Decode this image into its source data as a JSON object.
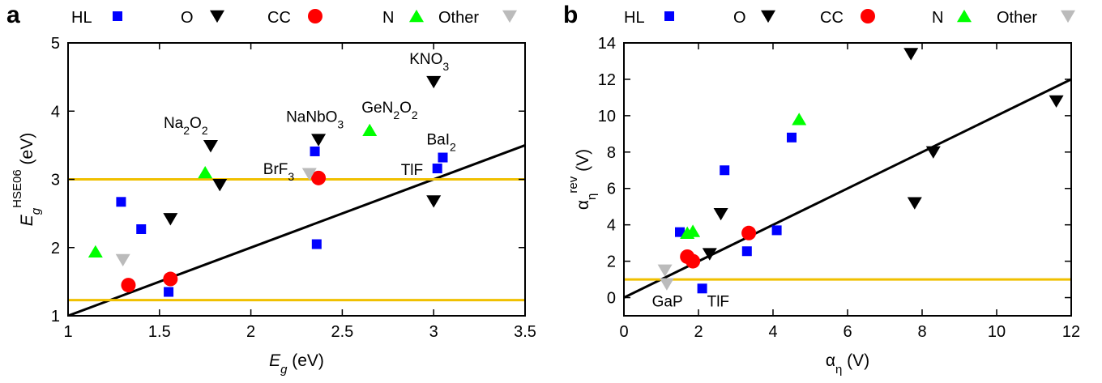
{
  "chart_data": [
    {
      "panel": "a",
      "type": "scatter",
      "xlabel": "E_g (eV)",
      "ylabel": "E_g^HSE06 (eV)",
      "xlim": [
        1,
        3.5
      ],
      "ylim": [
        1,
        5
      ],
      "xticks": [
        1,
        1.5,
        2,
        2.5,
        3,
        3.5
      ],
      "yticks": [
        1,
        2,
        3,
        4,
        5
      ],
      "xtick_labels": [
        "1",
        "1.5",
        "2",
        "2.5",
        "3",
        "3.5"
      ],
      "ytick_labels": [
        "1",
        "2",
        "3",
        "4",
        "5"
      ],
      "grid": false,
      "legend_position": "top",
      "series": [
        {
          "name": "HL",
          "marker": "square",
          "color": "#0000ff",
          "points": [
            [
              1.29,
              2.67
            ],
            [
              1.4,
              2.27
            ],
            [
              1.55,
              1.35
            ],
            [
              2.35,
              3.41
            ],
            [
              2.36,
              2.05
            ],
            [
              3.02,
              3.16
            ],
            [
              3.05,
              3.32
            ]
          ]
        },
        {
          "name": "O",
          "marker": "triangle-down",
          "color": "#000000",
          "points": [
            [
              1.56,
              2.42
            ],
            [
              1.78,
              3.49
            ],
            [
              1.83,
              2.92
            ],
            [
              2.37,
              3.58
            ],
            [
              3.0,
              4.43
            ],
            [
              3.0,
              2.68
            ]
          ]
        },
        {
          "name": "CC",
          "marker": "circle",
          "color": "#ff0000",
          "points": [
            [
              1.33,
              1.45
            ],
            [
              1.56,
              1.54
            ],
            [
              2.37,
              3.02
            ]
          ]
        },
        {
          "name": "N",
          "marker": "triangle-up",
          "color": "#00ff00",
          "points": [
            [
              1.15,
              1.94
            ],
            [
              1.75,
              3.1
            ],
            [
              2.65,
              3.72
            ]
          ]
        },
        {
          "name": "Other",
          "marker": "triangle-down",
          "color": "#bbbbbb",
          "points": [
            [
              1.3,
              1.82
            ],
            [
              2.32,
              3.08
            ]
          ]
        }
      ],
      "lines": [
        {
          "kind": "fit",
          "color": "#000000",
          "from": [
            1,
            1
          ],
          "to": [
            3.5,
            3.5
          ]
        },
        {
          "kind": "horizontal",
          "color": "#f0c000",
          "y": 3.0
        },
        {
          "kind": "horizontal",
          "color": "#f0c000",
          "y": 1.23
        }
      ],
      "annotations": [
        {
          "text": "KNO3",
          "x": 3.0,
          "y": 4.43
        },
        {
          "text": "Na2O2",
          "x": 1.78,
          "y": 3.49
        },
        {
          "text": "NaNbO3",
          "x": 2.37,
          "y": 3.58
        },
        {
          "text": "GeN2O2",
          "x": 2.65,
          "y": 3.72
        },
        {
          "text": "BrF3",
          "x": 2.32,
          "y": 3.08
        },
        {
          "text": "BaI2",
          "x": 3.05,
          "y": 3.32
        },
        {
          "text": "TlF",
          "x": 3.02,
          "y": 3.16
        }
      ]
    },
    {
      "panel": "b",
      "type": "scatter",
      "xlabel": "α_η (V)",
      "ylabel": "α_η^rev (V)",
      "xlim": [
        0,
        12
      ],
      "ylim": [
        -1,
        14
      ],
      "xticks": [
        0,
        2,
        4,
        6,
        8,
        10,
        12
      ],
      "yticks": [
        0,
        2,
        4,
        6,
        8,
        10,
        12,
        14
      ],
      "xtick_labels": [
        "0",
        "2",
        "4",
        "6",
        "8",
        "10",
        "12"
      ],
      "ytick_labels": [
        "0",
        "2",
        "4",
        "6",
        "8",
        "10",
        "12",
        "14"
      ],
      "grid": false,
      "legend_position": "top",
      "series": [
        {
          "name": "HL",
          "marker": "square",
          "color": "#0000ff",
          "points": [
            [
              1.5,
              3.6
            ],
            [
              2.1,
              0.5
            ],
            [
              2.7,
              7.0
            ],
            [
              3.3,
              2.55
            ],
            [
              4.1,
              3.7
            ],
            [
              4.5,
              8.8
            ]
          ]
        },
        {
          "name": "O",
          "marker": "triangle-down",
          "color": "#000000",
          "points": [
            [
              2.3,
              2.4
            ],
            [
              2.6,
              4.6
            ],
            [
              7.7,
              13.4
            ],
            [
              7.8,
              5.2
            ],
            [
              8.3,
              8.0
            ],
            [
              11.6,
              10.8
            ]
          ]
        },
        {
          "name": "CC",
          "marker": "circle",
          "color": "#ff0000",
          "points": [
            [
              1.7,
              2.25
            ],
            [
              1.85,
              2.0
            ],
            [
              3.35,
              3.55
            ]
          ]
        },
        {
          "name": "N",
          "marker": "triangle-up",
          "color": "#00ff00",
          "points": [
            [
              1.7,
              3.55
            ],
            [
              1.85,
              3.65
            ],
            [
              4.7,
              9.8
            ]
          ]
        },
        {
          "name": "Other",
          "marker": "triangle-down",
          "color": "#bbbbbb",
          "points": [
            [
              1.1,
              1.5
            ],
            [
              1.15,
              0.75
            ]
          ]
        }
      ],
      "lines": [
        {
          "kind": "fit",
          "color": "#000000",
          "from": [
            0,
            0
          ],
          "to": [
            12,
            12
          ]
        },
        {
          "kind": "horizontal",
          "color": "#f0c000",
          "y": 1.0
        }
      ],
      "annotations": [
        {
          "text": "GaP",
          "x": 1.1,
          "y": 0.75
        },
        {
          "text": "TlF",
          "x": 2.1,
          "y": 0.5
        }
      ]
    }
  ],
  "legend": {
    "a": [
      "HL",
      "O",
      "CC",
      "N",
      "Other"
    ],
    "b": [
      "HL",
      "O",
      "CC",
      "N",
      "Other"
    ]
  },
  "panel_labels": [
    "a",
    "b"
  ]
}
